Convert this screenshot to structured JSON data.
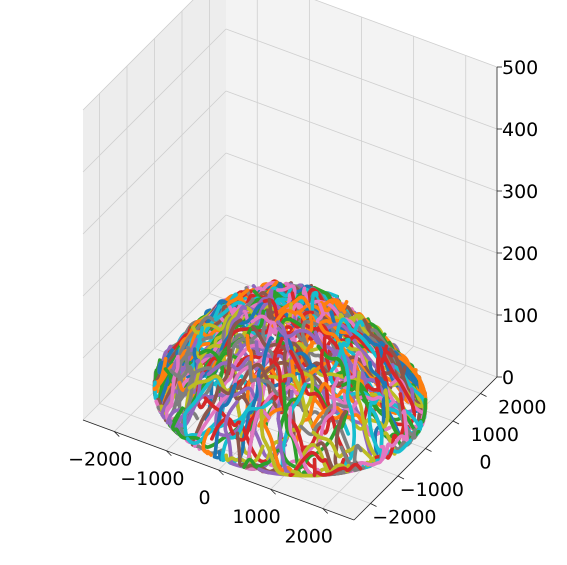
{
  "chart_data": {
    "type": "line",
    "projection": "3d",
    "title": "",
    "xlabel": "",
    "ylabel": "",
    "zlabel": "",
    "xlim": [
      -2600,
      2600
    ],
    "ylim": [
      -2600,
      2600
    ],
    "zlim": [
      0,
      500
    ],
    "grid": true,
    "legend": "none",
    "x_ticks": [
      "−2000",
      "−1000",
      "0",
      "1000",
      "2000"
    ],
    "y_ticks": [
      "−2000",
      "−1000",
      "0",
      "1000",
      "2000"
    ],
    "z_ticks": [
      "0",
      "100",
      "200",
      "300",
      "400",
      "500"
    ],
    "series_description": "Hundreds of random-walk curves forming a mound centered at x=0, y=0, heights peaking near z=150",
    "series_count_drawn": 420,
    "max_height": 150,
    "footprint_radius": 2300,
    "palette": [
      "#1f77b4",
      "#ff7f0e",
      "#2ca02c",
      "#d62728",
      "#9467bd",
      "#8c564b",
      "#e377c2",
      "#7f7f7f",
      "#bcbd22",
      "#17becf"
    ]
  }
}
